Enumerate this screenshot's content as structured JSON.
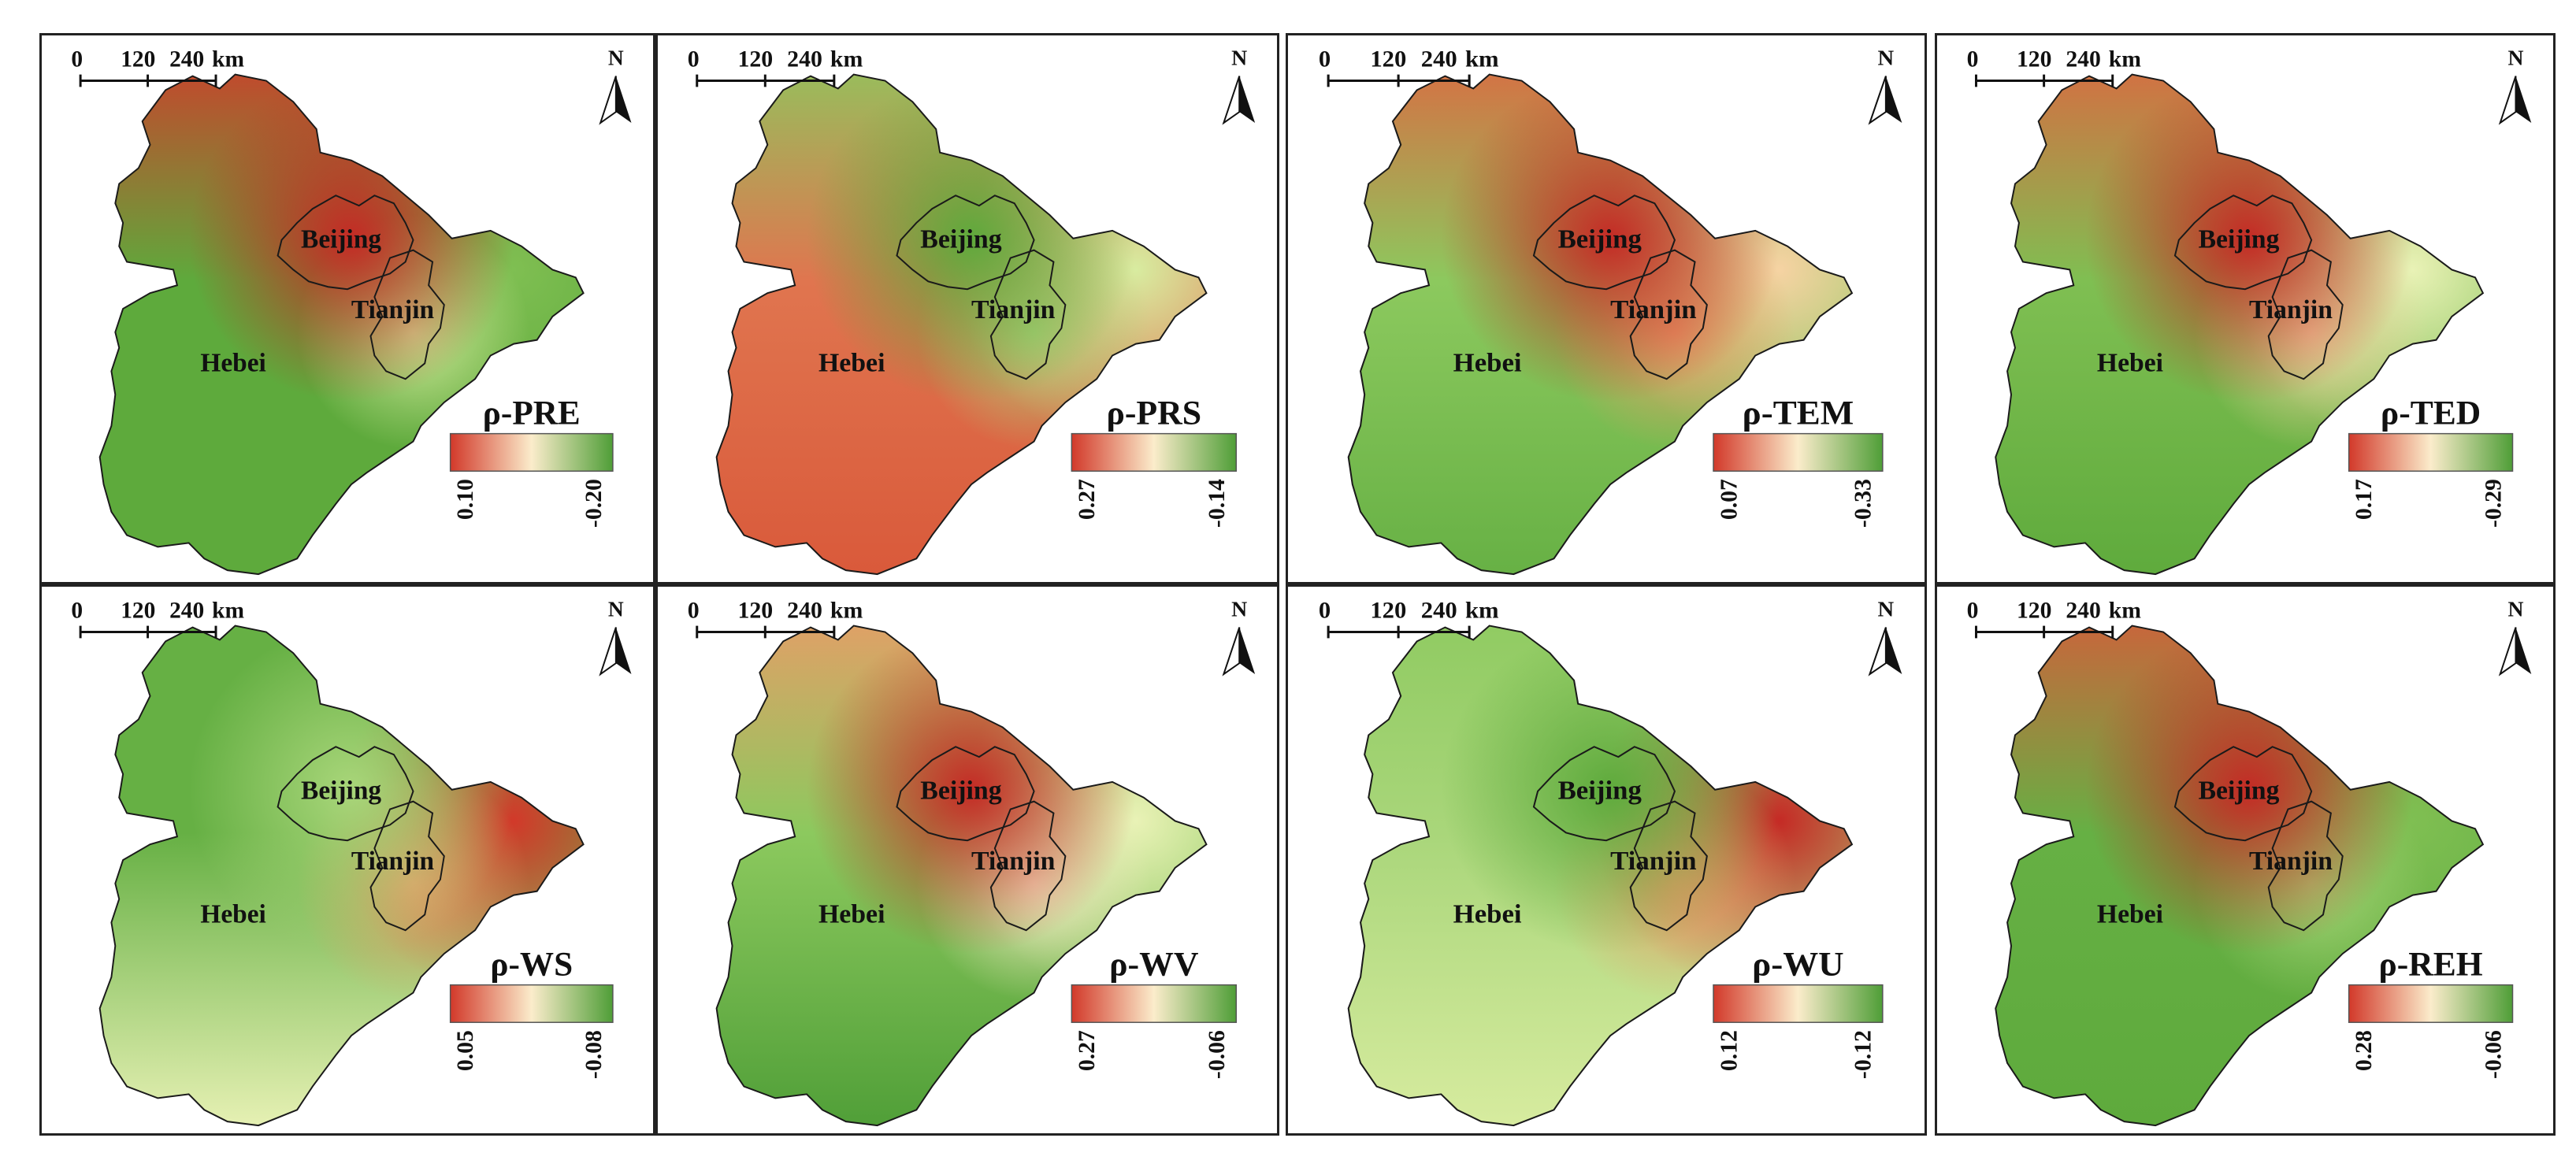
{
  "figure": {
    "scale_bar": {
      "ticks": [
        "0",
        "120",
        "240"
      ],
      "unit": "km"
    },
    "north_label": "N",
    "region_labels": [
      "Beijing",
      "Tianjin",
      "Hebei"
    ],
    "panels": [
      {
        "title": "ρ-PRE",
        "legend_min": "0.10",
        "legend_max": "-0.20",
        "colors": {
          "north": "#d2392a",
          "beijing": "#c52a25",
          "east": "#7fbf52",
          "south": "#5eaa3c",
          "tianjin": "#d8eca0",
          "hebei_label_area": "#5eaa3c"
        }
      },
      {
        "title": "ρ-PRS",
        "legend_min": "0.27",
        "legend_max": "-0.14",
        "colors": {
          "north": "#8cc95e",
          "beijing": "#5eaa3c",
          "east": "#d8eca0",
          "south": "#d9593a",
          "tianjin": "#a9d67a",
          "hebei_label_area": "#e0754f"
        }
      },
      {
        "title": "ρ-TEM",
        "legend_min": "0.07",
        "legend_max": "-0.33",
        "colors": {
          "north": "#e06440",
          "beijing": "#c52a25",
          "east": "#f6d3a3",
          "south": "#66b044",
          "tianjin": "#ee9a68",
          "hebei_label_area": "#8cc95e"
        }
      },
      {
        "title": "ρ-TED",
        "legend_min": "0.17",
        "legend_max": "-0.29",
        "colors": {
          "north": "#e06440",
          "beijing": "#c52a25",
          "east": "#e9f2b6",
          "south": "#5eaa3c",
          "tianjin": "#f6d3a3",
          "hebei_label_area": "#7fbf52"
        }
      },
      {
        "title": "ρ-WS",
        "legend_min": "0.05",
        "legend_max": "-0.08",
        "colors": {
          "north": "#66b044",
          "beijing": "#a9d67a",
          "east": "#d2392a",
          "south": "#e9f2b6",
          "tianjin": "#ee9a68",
          "hebei_label_area": "#66b044"
        }
      },
      {
        "title": "ρ-WV",
        "legend_min": "0.27",
        "legend_max": "-0.06",
        "colors": {
          "north": "#ee9a68",
          "beijing": "#c52a25",
          "east": "#e9f2b6",
          "south": "#4f9e37",
          "tianjin": "#fbeccb",
          "hebei_label_area": "#8cc95e"
        }
      },
      {
        "title": "ρ-WU",
        "legend_min": "0.12",
        "legend_max": "-0.12",
        "colors": {
          "north": "#8cc95e",
          "beijing": "#5eaa3c",
          "east": "#c52a25",
          "south": "#d8eca0",
          "tianjin": "#ee9a68",
          "hebei_label_area": "#a9d67a"
        }
      },
      {
        "title": "ρ-REH",
        "legend_min": "0.28",
        "legend_max": "-0.06",
        "colors": {
          "north": "#d9593a",
          "beijing": "#c52a25",
          "east": "#7fbf52",
          "south": "#5eaa3c",
          "tianjin": "#a9d67a",
          "hebei_label_area": "#66b044"
        }
      }
    ],
    "legend_ramp": [
      "#d2392a",
      "#fbeccb",
      "#4f9e37"
    ]
  }
}
